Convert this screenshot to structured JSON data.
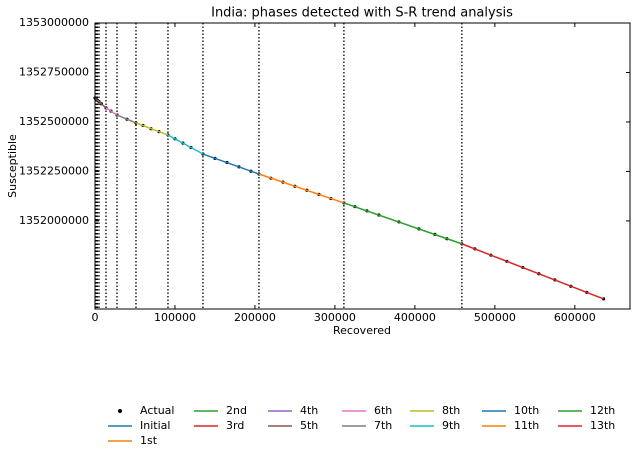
{
  "chart_data": {
    "type": "line",
    "title": "India: phases detected with S-R trend analysis",
    "xlabel": "Recovered",
    "ylabel": "Susceptible",
    "xlim": [
      0,
      669000
    ],
    "ylim": [
      1351555000,
      1353000000
    ],
    "xticks": [
      0,
      100000,
      200000,
      300000,
      400000,
      500000,
      600000
    ],
    "yticks": [
      1352000000,
      1352250000,
      1352500000,
      1352750000,
      1353000000
    ],
    "change_points": [
      500,
      1000,
      2000,
      3000,
      5000,
      13750,
      27500,
      51250,
      91250,
      135000,
      205000,
      311250,
      458750
    ],
    "series": [
      {
        "name": "Actual",
        "color": "#000000",
        "mode": "markers",
        "x": [
          0,
          500,
          1000,
          2000,
          3000,
          5000,
          8000,
          13750,
          20000,
          27500,
          40000,
          51250,
          60000,
          70000,
          80000,
          91250,
          100000,
          110000,
          120000,
          135000,
          150000,
          165000,
          180000,
          195000,
          205000,
          220000,
          235000,
          250000,
          265000,
          280000,
          295000,
          311250,
          325000,
          340000,
          355000,
          380000,
          405000,
          425000,
          440000,
          458750,
          475000,
          495000,
          515000,
          535000,
          555000,
          575000,
          595000,
          615000,
          636000
        ],
        "values": [
          1352621000,
          1352619000,
          1352617000,
          1352613000,
          1352610000,
          1352603000,
          1352592000,
          1352571000,
          1352555000,
          1352535000,
          1352514000,
          1352495000,
          1352482000,
          1352466000,
          1352451000,
          1352434000,
          1352415000,
          1352393000,
          1352371000,
          1352338000,
          1352316000,
          1352295000,
          1352273000,
          1352251000,
          1352237000,
          1352216000,
          1352196000,
          1352175000,
          1352155000,
          1352134000,
          1352113000,
          1352091000,
          1352072000,
          1352051000,
          1352030000,
          1351995000,
          1351960000,
          1351932000,
          1351910000,
          1351884000,
          1351859000,
          1351827000,
          1351796000,
          1351765000,
          1351733000,
          1351702000,
          1351670000,
          1351639000,
          1351606000
        ]
      },
      {
        "name": "Initial",
        "color": "#1f77b4",
        "x": [
          0,
          500
        ],
        "values": [
          1352621000,
          1352619000
        ]
      },
      {
        "name": "1st",
        "color": "#ff7f0e",
        "x": [
          500,
          1000
        ],
        "values": [
          1352619000,
          1352617000
        ]
      },
      {
        "name": "2nd",
        "color": "#2ca02c",
        "x": [
          1000,
          2000
        ],
        "values": [
          1352617000,
          1352613000
        ]
      },
      {
        "name": "3rd",
        "color": "#d62728",
        "x": [
          2000,
          3000
        ],
        "values": [
          1352613000,
          1352610000
        ]
      },
      {
        "name": "4th",
        "color": "#9467bd",
        "x": [
          3000,
          5000
        ],
        "values": [
          1352610000,
          1352603000
        ]
      },
      {
        "name": "5th",
        "color": "#8c564b",
        "x": [
          5000,
          13750
        ],
        "values": [
          1352603000,
          1352571000
        ]
      },
      {
        "name": "6th",
        "color": "#e377c2",
        "x": [
          13750,
          27500
        ],
        "values": [
          1352571000,
          1352535000
        ]
      },
      {
        "name": "7th",
        "color": "#7f7f7f",
        "x": [
          27500,
          51250
        ],
        "values": [
          1352535000,
          1352495000
        ]
      },
      {
        "name": "8th",
        "color": "#bcbd22",
        "x": [
          51250,
          91250
        ],
        "values": [
          1352495000,
          1352434000
        ]
      },
      {
        "name": "9th",
        "color": "#17becf",
        "x": [
          91250,
          135000
        ],
        "values": [
          1352434000,
          1352338000
        ]
      },
      {
        "name": "10th",
        "color": "#1f77b4",
        "x": [
          135000,
          205000
        ],
        "values": [
          1352338000,
          1352237000
        ]
      },
      {
        "name": "11th",
        "color": "#ff7f0e",
        "x": [
          205000,
          311250
        ],
        "values": [
          1352237000,
          1352091000
        ]
      },
      {
        "name": "12th",
        "color": "#2ca02c",
        "x": [
          311250,
          458750
        ],
        "values": [
          1352091000,
          1351884000
        ]
      },
      {
        "name": "13th",
        "color": "#d62728",
        "x": [
          458750,
          636000
        ],
        "values": [
          1351884000,
          1351606000
        ]
      }
    ]
  }
}
